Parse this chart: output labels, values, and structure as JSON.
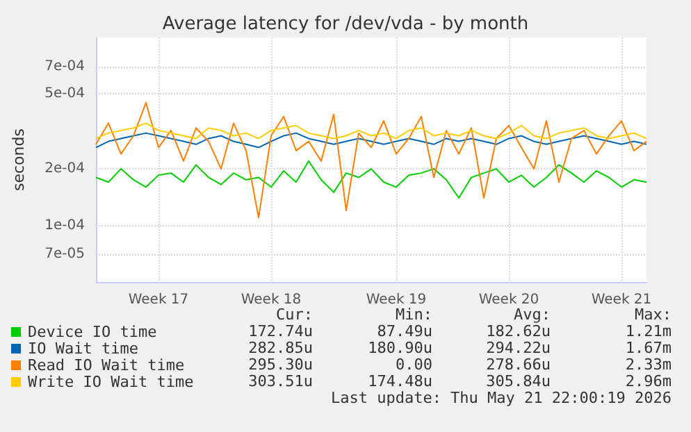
{
  "chart_data": {
    "type": "line",
    "title": "Average latency for /dev/vda - by month",
    "ylabel": "seconds",
    "categories": [
      null,
      null,
      null,
      null,
      null,
      "Week 17",
      null,
      null,
      null,
      null,
      null,
      null,
      null,
      null,
      "Week 18",
      null,
      null,
      null,
      null,
      null,
      null,
      null,
      null,
      null,
      "Week 19",
      null,
      null,
      null,
      null,
      null,
      null,
      null,
      null,
      "Week 20",
      null,
      null,
      null,
      null,
      null,
      null,
      null,
      null,
      "Week 21",
      null,
      null
    ],
    "series": [
      {
        "name": "Device IO time",
        "color": "#00cc00",
        "values": [
          0.00018,
          0.00017,
          0.0002,
          0.000175,
          0.00016,
          0.000185,
          0.00019,
          0.00017,
          0.00021,
          0.00018,
          0.000165,
          0.00019,
          0.000175,
          0.00018,
          0.00016,
          0.000195,
          0.00017,
          0.00022,
          0.000175,
          0.00015,
          0.00019,
          0.00018,
          0.0002,
          0.00017,
          0.00016,
          0.000185,
          0.00019,
          0.0002,
          0.000175,
          0.00014,
          0.00018,
          0.00019,
          0.0002,
          0.00017,
          0.000185,
          0.00016,
          0.00018,
          0.00021,
          0.00019,
          0.00017,
          0.000195,
          0.00018,
          0.00016,
          0.000175,
          0.00017
        ]
      },
      {
        "name": "IO Wait time",
        "color": "#0066b3",
        "values": [
          0.00026,
          0.00028,
          0.00029,
          0.0003,
          0.00031,
          0.0003,
          0.00029,
          0.00028,
          0.00027,
          0.00029,
          0.0003,
          0.00028,
          0.00027,
          0.00026,
          0.00028,
          0.0003,
          0.00031,
          0.00029,
          0.00028,
          0.00027,
          0.00028,
          0.00029,
          0.00028,
          0.00027,
          0.00028,
          0.00029,
          0.00028,
          0.00027,
          0.00029,
          0.00028,
          0.00029,
          0.00028,
          0.00027,
          0.00029,
          0.0003,
          0.00028,
          0.00027,
          0.00028,
          0.00029,
          0.0003,
          0.00029,
          0.00028,
          0.00027,
          0.00028,
          0.00027
        ]
      },
      {
        "name": "Read IO Wait time",
        "color": "#ff8000",
        "values": [
          0.00027,
          0.00035,
          0.00024,
          0.0003,
          0.00045,
          0.00026,
          0.00032,
          0.00022,
          0.00033,
          0.00028,
          0.0002,
          0.00035,
          0.00025,
          0.00011,
          0.0003,
          0.00038,
          0.00025,
          0.00028,
          0.00022,
          0.00039,
          0.00012,
          0.00031,
          0.00026,
          0.00036,
          0.00024,
          0.00029,
          0.00038,
          0.00018,
          0.00032,
          0.00024,
          0.00033,
          0.00014,
          0.00029,
          0.00034,
          0.00026,
          0.0002,
          0.00036,
          0.00017,
          0.00029,
          0.00032,
          0.00024,
          0.0003,
          0.00036,
          0.00025,
          0.00028
        ]
      },
      {
        "name": "Write IO Wait time",
        "color": "#ffcc00",
        "values": [
          0.00029,
          0.00031,
          0.00032,
          0.00033,
          0.00035,
          0.00032,
          0.00031,
          0.0003,
          0.00029,
          0.00033,
          0.00032,
          0.0003,
          0.00031,
          0.00029,
          0.00032,
          0.00033,
          0.00034,
          0.00031,
          0.0003,
          0.00029,
          0.0003,
          0.00032,
          0.0003,
          0.00031,
          0.00029,
          0.00032,
          0.00033,
          0.0003,
          0.00031,
          0.0003,
          0.00032,
          0.0003,
          0.00029,
          0.00031,
          0.00034,
          0.0003,
          0.00029,
          0.00031,
          0.00032,
          0.00033,
          0.0003,
          0.00029,
          0.0003,
          0.00031,
          0.00029
        ]
      }
    ],
    "ylim": [
      5e-05,
      0.001
    ],
    "yticks": [
      {
        "value": 7e-05,
        "label": "7e-05"
      },
      {
        "value": 0.0001,
        "label": "1e-04"
      },
      {
        "value": 0.0002,
        "label": "2e-04"
      },
      {
        "value": 0.0005,
        "label": "5e-04"
      },
      {
        "value": 0.0007,
        "label": "7e-04"
      }
    ],
    "log": "y",
    "grid": true,
    "legend": "bottom left",
    "marker": "none",
    "line_style": "solid",
    "annotations": [
      "Cur:",
      "Min:",
      "Avg:",
      "Max:",
      "172.74u",
      "87.49u",
      "182.62u",
      "1.21m",
      "282.85u",
      "180.90u",
      "294.22u",
      "1.67m",
      "295.30u",
      "0.00",
      "278.66u",
      "2.33m",
      "303.51u",
      "174.48u",
      "305.84u",
      "2.96m",
      "Last update: Thu May 21 22:00:19 2026"
    ]
  }
}
